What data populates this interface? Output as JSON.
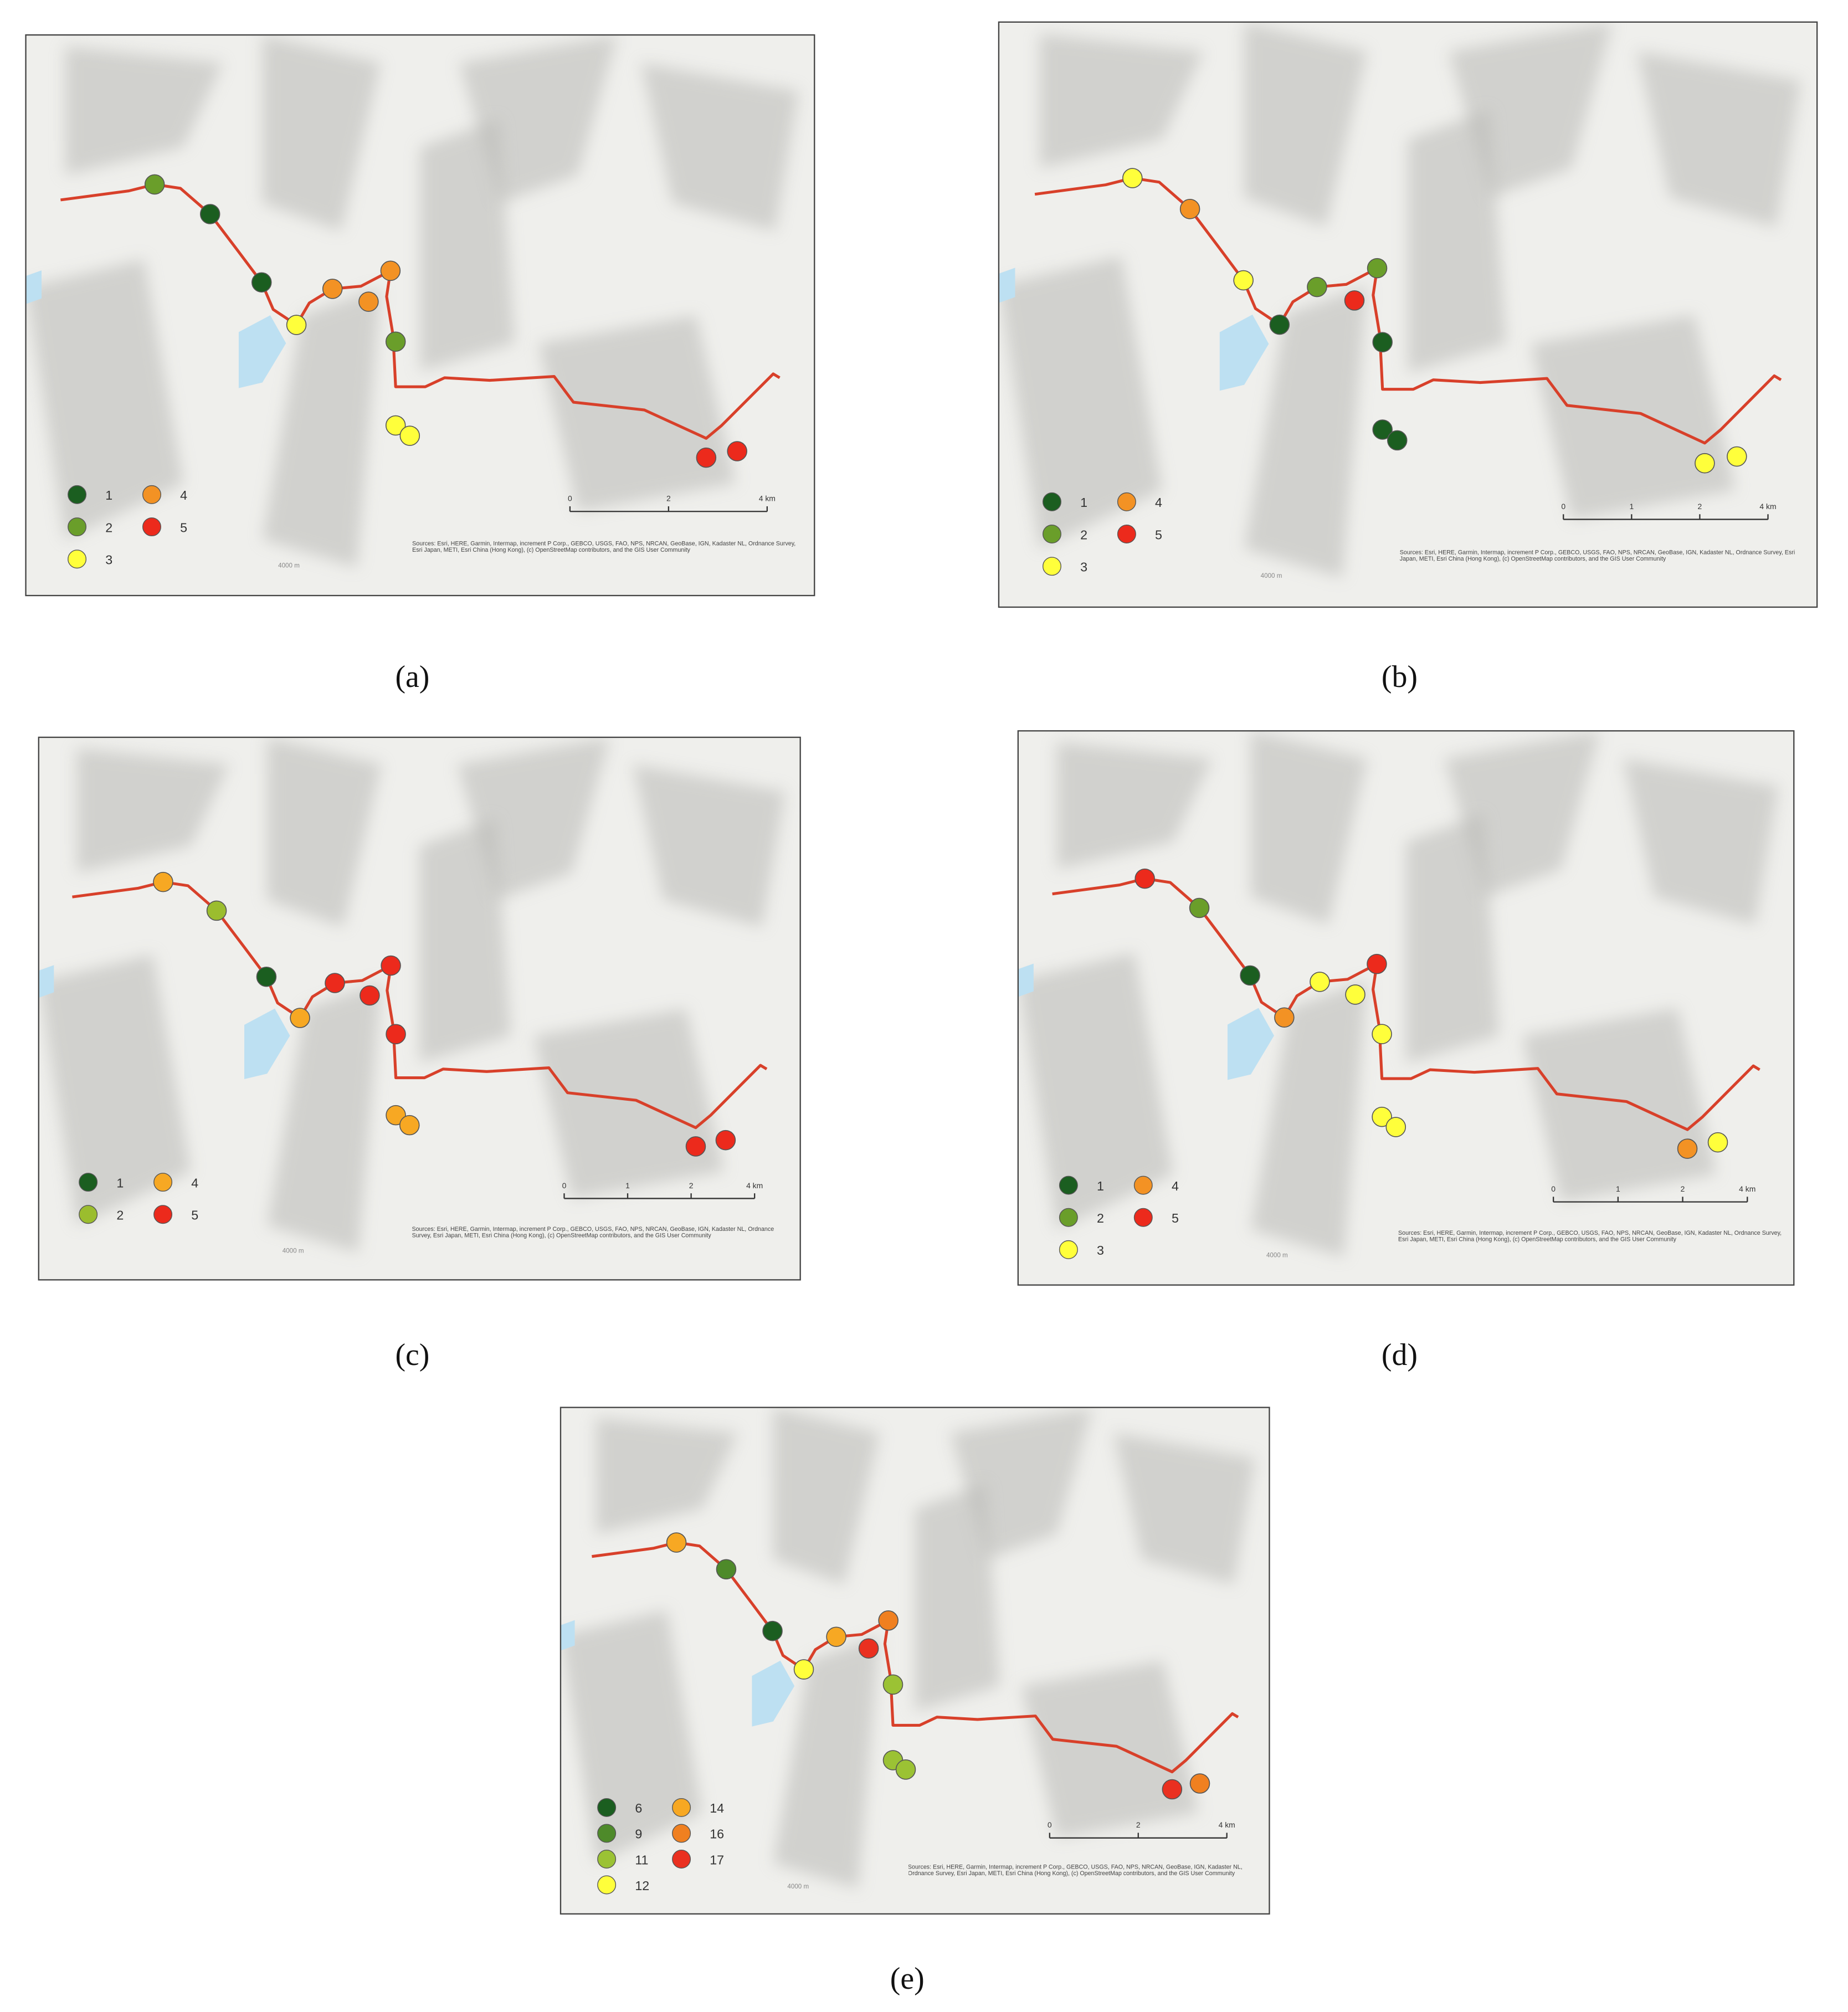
{
  "figure": {
    "panels": [
      {
        "caption": "(a)",
        "legend": [
          {
            "label": "1",
            "color": "#1b5e20"
          },
          {
            "label": "2",
            "color": "#6a9e2a"
          },
          {
            "label": "3",
            "color": "#ffff3b"
          },
          {
            "label": "4",
            "color": "#f39224"
          },
          {
            "label": "5",
            "color": "#ec2a1c"
          }
        ],
        "point_colors": [
          "#6a9e2a",
          "#1b5e20",
          "#1b5e20",
          "#ffff3b",
          "#f39224",
          "#f39224",
          "#f39224",
          "#6a9e2a",
          "#ffff3b",
          "#ffff3b",
          "#ec2a1c",
          "#ec2a1c"
        ],
        "scale_labels": [
          "0",
          "2",
          "4 km"
        ],
        "contour_label": "4000 m",
        "attribution": "Sources: Esri, HERE, Garmin, Intermap, increment P Corp., GEBCO, USGS, FAO, NPS, NRCAN, GeoBase, IGN, Kadaster NL, Ordnance Survey, Esri Japan, METI, Esri China (Hong Kong), (c) OpenStreetMap contributors, and the GIS User Community"
      },
      {
        "caption": "(b)",
        "legend": [
          {
            "label": "1",
            "color": "#1b5e20"
          },
          {
            "label": "2",
            "color": "#6a9e2a"
          },
          {
            "label": "3",
            "color": "#ffff3b"
          },
          {
            "label": "4",
            "color": "#f39224"
          },
          {
            "label": "5",
            "color": "#ec2a1c"
          }
        ],
        "point_colors": [
          "#ffff3b",
          "#f39224",
          "#ffff3b",
          "#1b5e20",
          "#6a9e2a",
          "#ec2a1c",
          "#6a9e2a",
          "#1b5e20",
          "#1b5e20",
          "#1b5e20",
          "#ffff3b",
          "#ffff3b"
        ],
        "scale_labels": [
          "0",
          "1",
          "2",
          "4 km"
        ],
        "contour_label": "4000 m",
        "attribution": "Sources: Esri, HERE, Garmin, Intermap, increment P Corp., GEBCO, USGS, FAO, NPS, NRCAN, GeoBase, IGN, Kadaster NL, Ordnance Survey, Esri Japan, METI, Esri China (Hong Kong), (c) OpenStreetMap contributors, and the GIS User Community"
      },
      {
        "caption": "(c)",
        "legend": [
          {
            "label": "1",
            "color": "#1b5e20"
          },
          {
            "label": "2",
            "color": "#9bbd2e"
          },
          {
            "label": "4",
            "color": "#f7a823"
          },
          {
            "label": "5",
            "color": "#ec2a1c"
          }
        ],
        "point_colors": [
          "#f7a823",
          "#9bbd2e",
          "#1b5e20",
          "#f7a823",
          "#ec2a1c",
          "#ec2a1c",
          "#ec2a1c",
          "#ec2a1c",
          "#f7a823",
          "#f7a823",
          "#ec2a1c",
          "#ec2a1c"
        ],
        "scale_labels": [
          "0",
          "1",
          "2",
          "4 km"
        ],
        "contour_label": "4000 m",
        "attribution": "Sources: Esri, HERE, Garmin, Intermap, increment P Corp., GEBCO, USGS, FAO, NPS, NRCAN, GeoBase, IGN, Kadaster NL, Ordnance Survey, Esri Japan, METI, Esri China (Hong Kong), (c) OpenStreetMap contributors, and the GIS User Community"
      },
      {
        "caption": "(d)",
        "legend": [
          {
            "label": "1",
            "color": "#1b5e20"
          },
          {
            "label": "2",
            "color": "#6a9e2a"
          },
          {
            "label": "3",
            "color": "#ffff3b"
          },
          {
            "label": "4",
            "color": "#f39224"
          },
          {
            "label": "5",
            "color": "#ec2a1c"
          }
        ],
        "point_colors": [
          "#ec2a1c",
          "#6a9e2a",
          "#1b5e20",
          "#f39224",
          "#ffff3b",
          "#ffff3b",
          "#ec2a1c",
          "#ffff3b",
          "#ffff3b",
          "#ffff3b",
          "#f39224",
          "#ffff3b"
        ],
        "scale_labels": [
          "0",
          "1",
          "2",
          "4 km"
        ],
        "contour_label": "4000 m",
        "attribution": "Sources: Esri, HERE, Garmin, Intermap, increment P Corp., GEBCO, USGS, FAO, NPS, NRCAN, GeoBase, IGN, Kadaster NL, Ordnance Survey, Esri Japan, METI, Esri China (Hong Kong), (c) OpenStreetMap contributors, and the GIS User Community"
      },
      {
        "caption": "(e)",
        "legend": [
          {
            "label": "6",
            "color": "#1b5e20"
          },
          {
            "label": "9",
            "color": "#4e8a2a"
          },
          {
            "label": "11",
            "color": "#9bc234"
          },
          {
            "label": "12",
            "color": "#ffff3b"
          },
          {
            "label": "14",
            "color": "#f7a823"
          },
          {
            "label": "16",
            "color": "#f08020"
          },
          {
            "label": "17",
            "color": "#ea3020"
          }
        ],
        "point_colors": [
          "#f7a823",
          "#4e8a2a",
          "#1b5e20",
          "#ffff3b",
          "#f7a823",
          "#ea3020",
          "#f08020",
          "#9bc234",
          "#9bc234",
          "#9bc234",
          "#ea3020",
          "#f08020"
        ],
        "scale_labels": [
          "0",
          "2",
          "4 km"
        ],
        "contour_label": "4000 m",
        "attribution": "Sources: Esri, HERE, Garmin, Intermap, increment P Corp., GEBCO, USGS, FAO, NPS, NRCAN, GeoBase, IGN, Kadaster NL, Ordnance Survey, Esri Japan, METI, Esri China (Hong Kong), (c) OpenStreetMap contributors, and the GIS User Community"
      }
    ]
  }
}
